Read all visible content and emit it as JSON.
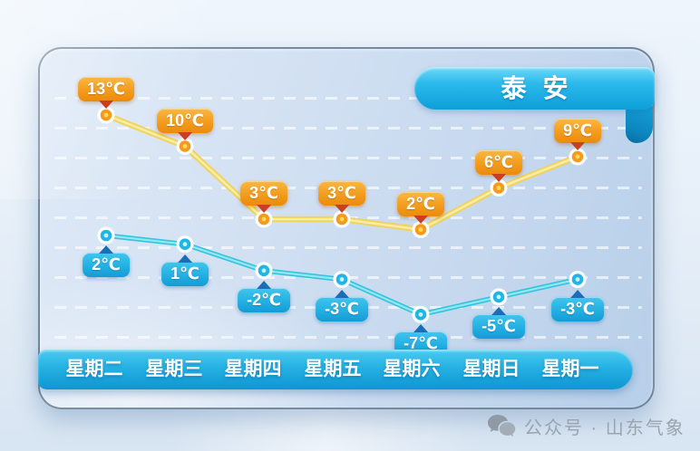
{
  "title": "泰安",
  "watermark": {
    "icon": "wechat-icon",
    "text": "公众号 · 山东气象"
  },
  "colors": {
    "high_badge": "#f29c1d",
    "high_badge_pointer": "#c7401f",
    "high_line": "#eed35f",
    "high_point": "#f59a1d",
    "low_badge": "#23b0e2",
    "low_badge_pointer": "#1a6db6",
    "low_line": "#35c5da",
    "low_point": "#1fb5e4",
    "title_ribbon": "#18abe2",
    "weekday_bar": "#1ba8dc",
    "card_background": "#cdddf0"
  },
  "chart_data": {
    "type": "line",
    "title": "泰安",
    "categories": [
      "星期二",
      "星期三",
      "星期四",
      "星期五",
      "星期六",
      "星期日",
      "星期一"
    ],
    "unit": "℃",
    "series": [
      {
        "name": "high",
        "values": [
          13,
          10,
          3,
          3,
          2,
          6,
          9
        ]
      },
      {
        "name": "low",
        "values": [
          2,
          1,
          -2,
          -3,
          -7,
          -5,
          -3
        ]
      }
    ],
    "grid": "dashed-horizontal",
    "legend_position": "none",
    "data_labels": "all-points"
  }
}
